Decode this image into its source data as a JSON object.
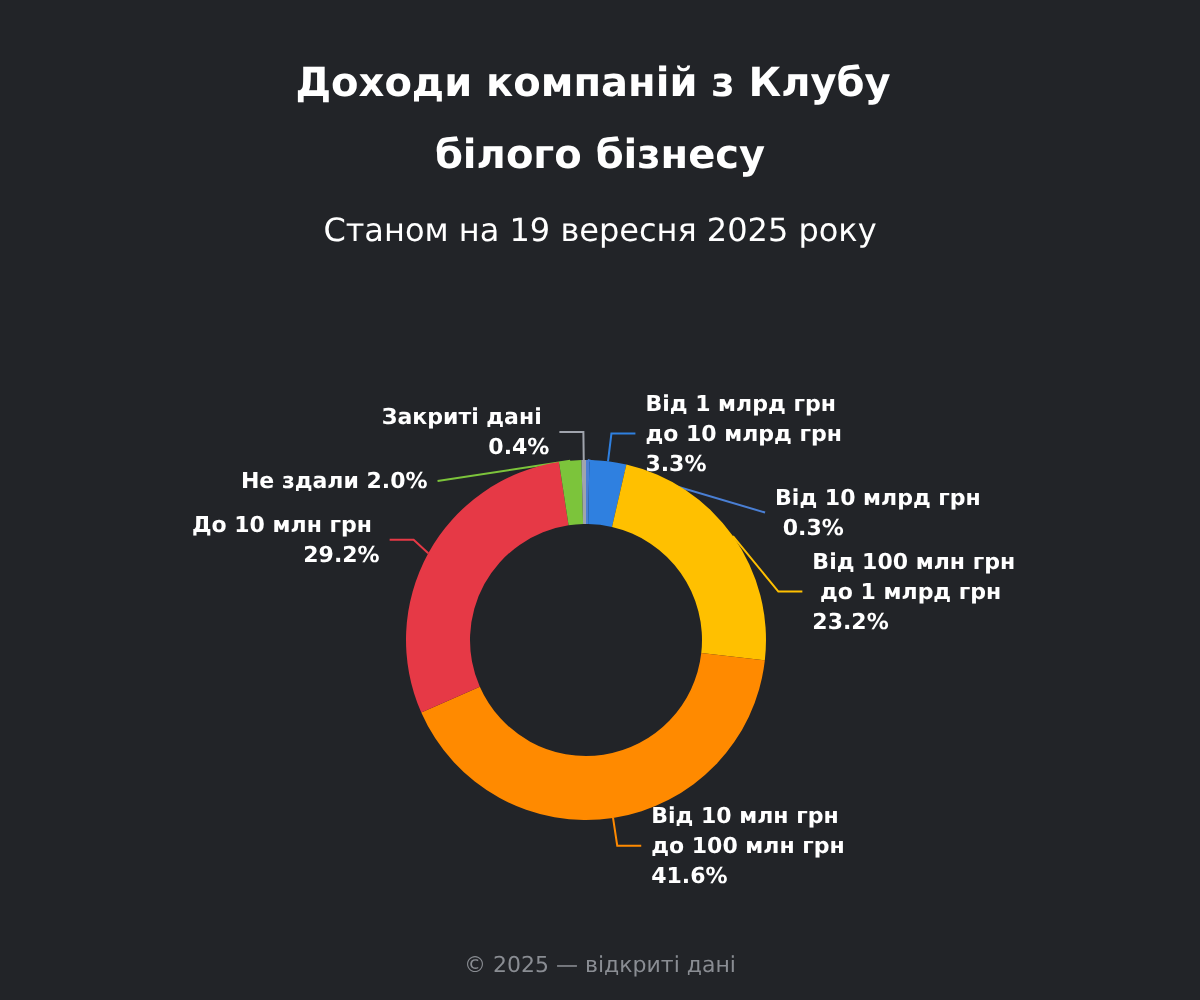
{
  "chart_data": {
    "type": "donut",
    "title": "Доходи компаній з Клубу білого бізнесу",
    "subtitle": "Станом на 19 вересня 2025 року",
    "categories": [
      "Від 10 млрд грн",
      "Від 1 млрд грн до 10 млрд грн",
      "Від 100 млн грн до 1 млрд грн",
      "Від 10 млн грн до 100 млн грн",
      "До 10 млн грн",
      "Не здали",
      "Закриті дані"
    ],
    "values": [
      0.3,
      3.3,
      23.2,
      41.6,
      29.2,
      2.0,
      0.4
    ],
    "value_labels": [
      "0.3%",
      "3.3%",
      "23.2%",
      "41.6%",
      "29.2%",
      "2.0%",
      "0.4%"
    ],
    "colors": [
      "#4a7fd4",
      "#2f80e0",
      "#ffc000",
      "#ff8a00",
      "#e63946",
      "#7cc43b",
      "#a0a4ad"
    ],
    "annotations": [
      "© 2025 — відкриті дані"
    ],
    "legend": false
  }
}
